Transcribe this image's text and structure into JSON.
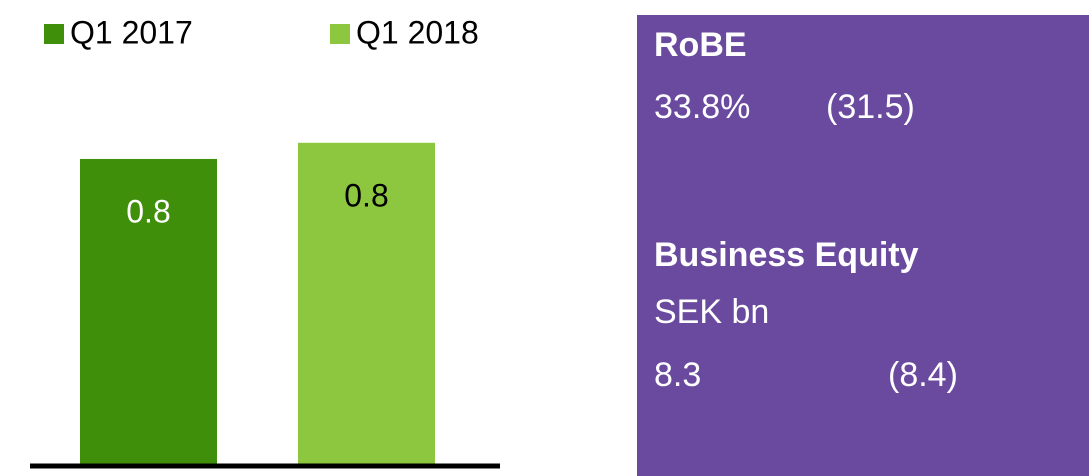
{
  "chart_data": {
    "type": "bar",
    "series": [
      {
        "name": "Q1 2017",
        "color": "#3f8f0b",
        "values": [
          0.76
        ],
        "value_labels": [
          "0.8"
        ]
      },
      {
        "name": "Q1 2018",
        "color": "#8dc63f",
        "values": [
          0.8
        ],
        "value_labels": [
          "0.8"
        ]
      }
    ],
    "ylim": [
      0,
      1
    ]
  },
  "panel": {
    "items": [
      {
        "title": "RoBE",
        "value": "33.8%",
        "previous": "(31.5)"
      },
      {
        "title": "Business Equity",
        "unit": "SEK bn",
        "value": "8.3",
        "previous": "(8.4)"
      }
    ]
  }
}
